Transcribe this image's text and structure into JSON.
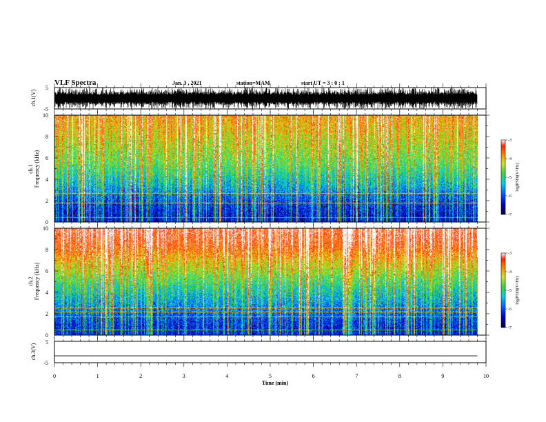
{
  "header": {
    "title": "VLF Spectra",
    "date": "Jan. 3 , 2021",
    "station": "station=MAM",
    "start": "start UT = 3 : 0 : 1"
  },
  "colors": {
    "spectrum": [
      "#00003c",
      "#0000c8",
      "#0060ff",
      "#00d2e6",
      "#3cd23c",
      "#c8e628",
      "#ff8c00",
      "#ff2800",
      "#ffffff"
    ]
  },
  "chart_data": [
    {
      "type": "line",
      "panel": "ch1-waveform",
      "ylabel": "ch.1(V)",
      "ylim": [
        -5,
        5
      ],
      "yticks": [
        5,
        -5
      ],
      "xlim": [
        0,
        10
      ],
      "description_values": {
        "approx_envelope_V": [
          -5,
          5
        ],
        "data_end_min": 9.8
      }
    },
    {
      "type": "heatmap",
      "panel": "ch1-spectrogram",
      "ylabel_lines": [
        "ch.1",
        "Frequency (kHz)"
      ],
      "ylim": [
        0,
        10
      ],
      "yticks": [
        0,
        2,
        4,
        6,
        8,
        10
      ],
      "xlim": [
        0,
        10
      ],
      "data_end_min": 9.8,
      "colorbar": {
        "label": "log(PSD)(V²/Hz)",
        "range": [
          -7,
          -3
        ],
        "ticks": [
          -3,
          -4,
          -5,
          -6,
          -7
        ]
      },
      "level_profile": [
        {
          "freq_khz": 0.5,
          "log_psd": -6.5
        },
        {
          "freq_khz": 1.5,
          "log_psd": -6.3
        },
        {
          "freq_khz": 2.5,
          "log_psd": -6.0
        },
        {
          "freq_khz": 3.5,
          "log_psd": -5.6
        },
        {
          "freq_khz": 4.5,
          "log_psd": -5.3
        },
        {
          "freq_khz": 5.5,
          "log_psd": -5.0
        },
        {
          "freq_khz": 6.5,
          "log_psd": -4.8
        },
        {
          "freq_khz": 7.5,
          "log_psd": -4.6
        },
        {
          "freq_khz": 8.5,
          "log_psd": -4.4
        },
        {
          "freq_khz": 9.5,
          "log_psd": -4.2
        }
      ]
    },
    {
      "type": "heatmap",
      "panel": "ch2-spectrogram",
      "ylabel_lines": [
        "ch.2",
        "Frequency (kHz)"
      ],
      "ylim": [
        0,
        10
      ],
      "yticks": [
        0,
        2,
        4,
        6,
        8,
        10
      ],
      "xlim": [
        0,
        10
      ],
      "data_end_min": 9.8,
      "colorbar": {
        "label": "log(PSD)(V²/Hz)",
        "range": [
          -7,
          -3
        ],
        "ticks": [
          -3,
          -4,
          -5,
          -6,
          -7
        ]
      },
      "level_profile": [
        {
          "freq_khz": 0.5,
          "log_psd": -6.4
        },
        {
          "freq_khz": 1.5,
          "log_psd": -6.2
        },
        {
          "freq_khz": 2.5,
          "log_psd": -5.9
        },
        {
          "freq_khz": 3.5,
          "log_psd": -5.6
        },
        {
          "freq_khz": 4.5,
          "log_psd": -5.3
        },
        {
          "freq_khz": 5.5,
          "log_psd": -4.9
        },
        {
          "freq_khz": 6.5,
          "log_psd": -4.5
        },
        {
          "freq_khz": 7.5,
          "log_psd": -4.1
        },
        {
          "freq_khz": 8.5,
          "log_psd": -3.7
        },
        {
          "freq_khz": 9.5,
          "log_psd": -3.5
        }
      ]
    },
    {
      "type": "line",
      "panel": "ch3-waveform",
      "ylabel": "ch.3(V)",
      "ylim": [
        -5,
        5
      ],
      "yticks": [
        5,
        0,
        -5
      ],
      "ytick_labels": [
        "5",
        "",
        "-5"
      ],
      "xlim": [
        0,
        10
      ],
      "xlabel": "Time (min)",
      "xticks": [
        0,
        1,
        2,
        3,
        4,
        5,
        6,
        7,
        8,
        9,
        10
      ],
      "series": [
        {
          "x": [
            0,
            9.8
          ],
          "y": [
            -1.8,
            -1.8
          ]
        }
      ]
    }
  ]
}
